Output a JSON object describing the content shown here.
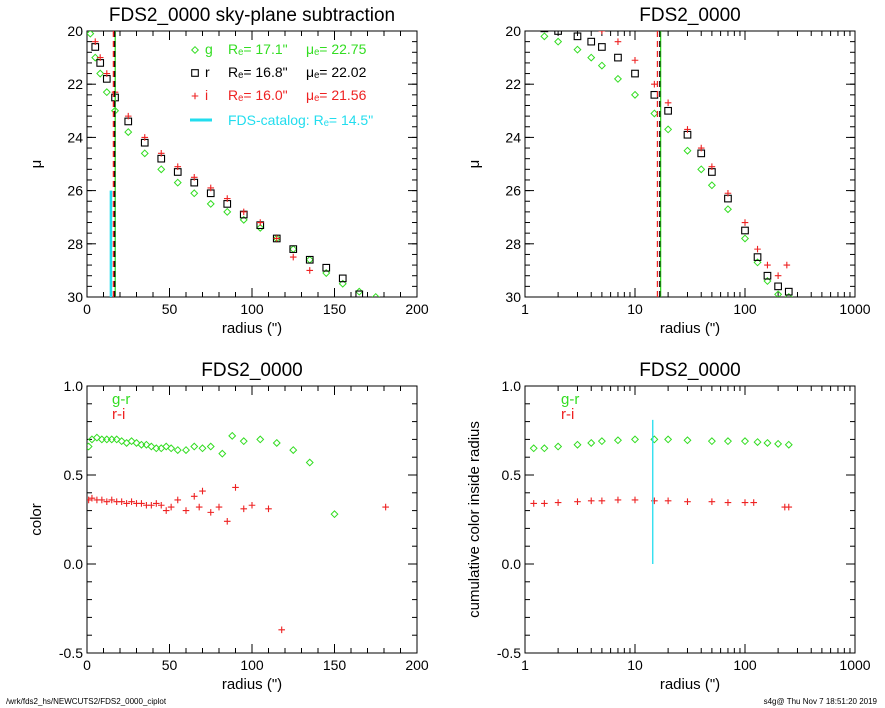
{
  "footer": {
    "left": "/wrk/fds2_hs/NEWCUTS2/FDS2_0000_ciplot",
    "right": "s4g@  Thu Nov  7 18:51:20 2019"
  },
  "colors": {
    "g": "#33dd22",
    "r": "#000000",
    "i": "#ee2222",
    "catalog": "#22ddee"
  },
  "chart_data": [
    {
      "id": "p1",
      "type": "scatter",
      "title": "FDS2_0000 sky-plane subtraction",
      "xlabel": "radius (\")",
      "ylabel": "μ",
      "xscale": "linear",
      "xlim": [
        0,
        200
      ],
      "ylim": [
        30,
        20
      ],
      "xticks": [
        0,
        50,
        100,
        150,
        200
      ],
      "yticks": [
        20,
        22,
        24,
        26,
        28,
        30
      ],
      "legend": [
        {
          "band": "g",
          "marker": "diamond",
          "color": "#33dd22",
          "re": "Rₑ=  17.1\"",
          "mu": "μₑ= 22.75"
        },
        {
          "band": "r",
          "marker": "square",
          "color": "#000000",
          "re": "Rₑ=  16.8\"",
          "mu": "μₑ= 22.02"
        },
        {
          "band": "i",
          "marker": "plus",
          "color": "#ee2222",
          "re": "Rₑ=  16.0\"",
          "mu": "μₑ= 21.56"
        }
      ],
      "catalog_label": "FDS-catalog: Rₑ=  14.5\"",
      "catalog_re": 14.5,
      "catalog_segment": [
        26.0,
        30.0
      ],
      "vlines": [
        {
          "x": 17.1,
          "color": "#33dd22",
          "style": "solid"
        },
        {
          "x": 16.8,
          "color": "#000000",
          "style": "dashed"
        },
        {
          "x": 16.0,
          "color": "#ee2222",
          "style": "dashed"
        }
      ],
      "series": [
        {
          "band": "g",
          "marker": "diamond",
          "color": "#33dd22",
          "x": [
            2,
            5,
            8,
            12,
            17,
            25,
            35,
            45,
            55,
            65,
            75,
            85,
            95,
            105,
            115,
            125,
            135,
            145,
            155,
            165,
            175
          ],
          "y": [
            20.1,
            21.0,
            21.6,
            22.3,
            23.0,
            23.8,
            24.6,
            25.2,
            25.7,
            26.1,
            26.5,
            26.8,
            27.1,
            27.4,
            27.8,
            28.2,
            28.6,
            29.1,
            29.5,
            29.8,
            30.0
          ]
        },
        {
          "band": "r",
          "marker": "square",
          "color": "#000000",
          "x": [
            2,
            5,
            8,
            12,
            17,
            25,
            35,
            45,
            55,
            65,
            75,
            85,
            95,
            105,
            115,
            125,
            135,
            145,
            155,
            165
          ],
          "y": [
            19.8,
            20.6,
            21.2,
            21.8,
            22.5,
            23.4,
            24.2,
            24.8,
            25.3,
            25.7,
            26.1,
            26.5,
            26.9,
            27.3,
            27.8,
            28.2,
            28.6,
            28.9,
            29.3,
            29.9
          ]
        },
        {
          "band": "i",
          "marker": "plus",
          "color": "#ee2222",
          "x": [
            2,
            5,
            8,
            12,
            17,
            25,
            35,
            45,
            55,
            65,
            75,
            85,
            95,
            105,
            115,
            125,
            135
          ],
          "y": [
            19.7,
            20.4,
            21.0,
            21.6,
            22.3,
            23.2,
            24.0,
            24.6,
            25.1,
            25.5,
            25.9,
            26.3,
            26.8,
            27.2,
            27.8,
            28.5,
            29.0
          ]
        }
      ]
    },
    {
      "id": "p2",
      "type": "scatter",
      "title": "FDS2_0000",
      "xlabel": "radius (\")",
      "ylabel": "μ",
      "xscale": "log",
      "xlim": [
        1,
        1000
      ],
      "ylim": [
        30,
        20
      ],
      "xticks": [
        1,
        10,
        100,
        1000
      ],
      "yticks": [
        20,
        22,
        24,
        26,
        28,
        30
      ],
      "vlines": [
        {
          "x": 17.1,
          "color": "#33dd22",
          "style": "solid"
        },
        {
          "x": 16.8,
          "color": "#000000",
          "style": "dashed"
        },
        {
          "x": 16.0,
          "color": "#ee2222",
          "style": "dashed"
        }
      ],
      "series": [
        {
          "band": "g",
          "marker": "diamond",
          "color": "#33dd22",
          "x": [
            1.5,
            2,
            3,
            4,
            5,
            7,
            10,
            15,
            20,
            30,
            40,
            50,
            70,
            100,
            130,
            160,
            200,
            250
          ],
          "y": [
            20.2,
            20.4,
            20.7,
            21.0,
            21.3,
            21.8,
            22.4,
            23.1,
            23.7,
            24.5,
            25.2,
            25.8,
            26.7,
            27.8,
            28.7,
            29.4,
            29.9,
            30.0
          ]
        },
        {
          "band": "r",
          "marker": "square",
          "color": "#000000",
          "x": [
            1.5,
            2,
            3,
            4,
            5,
            7,
            10,
            15,
            20,
            30,
            40,
            50,
            70,
            100,
            130,
            160,
            200,
            250
          ],
          "y": [
            19.9,
            20.0,
            20.2,
            20.4,
            20.6,
            21.0,
            21.6,
            22.4,
            23.0,
            23.9,
            24.6,
            25.3,
            26.3,
            27.5,
            28.5,
            29.2,
            29.6,
            29.8
          ]
        },
        {
          "band": "i",
          "marker": "plus",
          "color": "#ee2222",
          "x": [
            5,
            7,
            10,
            15,
            20,
            30,
            40,
            50,
            70,
            100,
            130,
            160,
            200,
            240
          ],
          "y": [
            20.0,
            20.4,
            21.1,
            22.0,
            22.7,
            23.7,
            24.4,
            25.1,
            26.1,
            27.2,
            28.2,
            28.8,
            29.2,
            28.8
          ]
        }
      ]
    },
    {
      "id": "p3",
      "type": "scatter",
      "title": "FDS2_0000",
      "xlabel": "radius (\")",
      "ylabel": "color",
      "xscale": "linear",
      "xlim": [
        0,
        200
      ],
      "ylim": [
        -0.5,
        1.0
      ],
      "xticks": [
        0,
        50,
        100,
        150,
        200
      ],
      "yticks": [
        -0.5,
        0.0,
        0.5,
        1.0
      ],
      "ytick_labels": [
        "-0.5",
        "0.0",
        "0.5",
        "1.0"
      ],
      "legend": [
        {
          "label": "g-r",
          "color": "#33dd22"
        },
        {
          "label": "r-i",
          "color": "#ee2222"
        }
      ],
      "series": [
        {
          "name": "g-r",
          "marker": "diamond",
          "color": "#33dd22",
          "x": [
            1,
            3,
            6,
            9,
            12,
            15,
            18,
            21,
            24,
            27,
            30,
            33,
            36,
            39,
            42,
            45,
            48,
            51,
            55,
            60,
            65,
            70,
            75,
            82,
            88,
            95,
            105,
            115,
            125,
            135,
            150
          ],
          "y": [
            0.66,
            0.7,
            0.71,
            0.7,
            0.7,
            0.7,
            0.7,
            0.69,
            0.68,
            0.69,
            0.68,
            0.67,
            0.67,
            0.66,
            0.65,
            0.65,
            0.66,
            0.65,
            0.64,
            0.64,
            0.66,
            0.65,
            0.66,
            0.62,
            0.72,
            0.69,
            0.7,
            0.68,
            0.64,
            0.57,
            0.28
          ]
        },
        {
          "name": "r-i",
          "marker": "plus",
          "color": "#ee2222",
          "x": [
            1,
            3,
            6,
            9,
            12,
            15,
            18,
            21,
            24,
            27,
            30,
            33,
            36,
            39,
            42,
            45,
            48,
            51,
            55,
            60,
            65,
            68,
            70,
            75,
            80,
            85,
            90,
            95,
            100,
            110,
            118,
            181
          ],
          "y": [
            0.36,
            0.37,
            0.36,
            0.36,
            0.35,
            0.36,
            0.35,
            0.35,
            0.34,
            0.35,
            0.34,
            0.34,
            0.33,
            0.33,
            0.34,
            0.33,
            0.3,
            0.32,
            0.36,
            0.3,
            0.38,
            0.32,
            0.41,
            0.29,
            0.32,
            0.24,
            0.43,
            0.31,
            0.33,
            0.31,
            -0.37,
            0.32
          ]
        }
      ]
    },
    {
      "id": "p4",
      "type": "scatter",
      "title": "FDS2_0000",
      "xlabel": "radius (\")",
      "ylabel": "cumulative color inside radius",
      "xscale": "log",
      "xlim": [
        1,
        1000
      ],
      "ylim": [
        -0.5,
        1.0
      ],
      "xticks": [
        1,
        10,
        100,
        1000
      ],
      "yticks": [
        -0.5,
        0.0,
        0.5,
        1.0
      ],
      "ytick_labels": [
        "-0.5",
        "0.0",
        "0.5",
        "1.0"
      ],
      "legend": [
        {
          "label": "g-r",
          "color": "#33dd22"
        },
        {
          "label": "r-i",
          "color": "#ee2222"
        }
      ],
      "catalog_re": 14.5,
      "catalog_segment": [
        0.0,
        0.81
      ],
      "series": [
        {
          "name": "g-r",
          "marker": "diamond",
          "color": "#33dd22",
          "x": [
            1.2,
            1.5,
            2,
            3,
            4,
            5,
            7,
            10,
            15,
            20,
            30,
            50,
            70,
            100,
            130,
            160,
            200,
            250
          ],
          "y": [
            0.65,
            0.65,
            0.66,
            0.67,
            0.68,
            0.69,
            0.695,
            0.7,
            0.7,
            0.7,
            0.695,
            0.69,
            0.69,
            0.69,
            0.685,
            0.68,
            0.675,
            0.67
          ]
        },
        {
          "name": "r-i",
          "marker": "plus",
          "color": "#ee2222",
          "x": [
            1.2,
            1.5,
            2,
            3,
            4,
            5,
            7,
            10,
            15,
            20,
            30,
            50,
            70,
            100,
            120,
            230,
            250
          ],
          "y": [
            0.34,
            0.34,
            0.345,
            0.35,
            0.355,
            0.355,
            0.36,
            0.36,
            0.355,
            0.355,
            0.35,
            0.35,
            0.345,
            0.345,
            0.345,
            0.32,
            0.32
          ]
        }
      ]
    }
  ]
}
